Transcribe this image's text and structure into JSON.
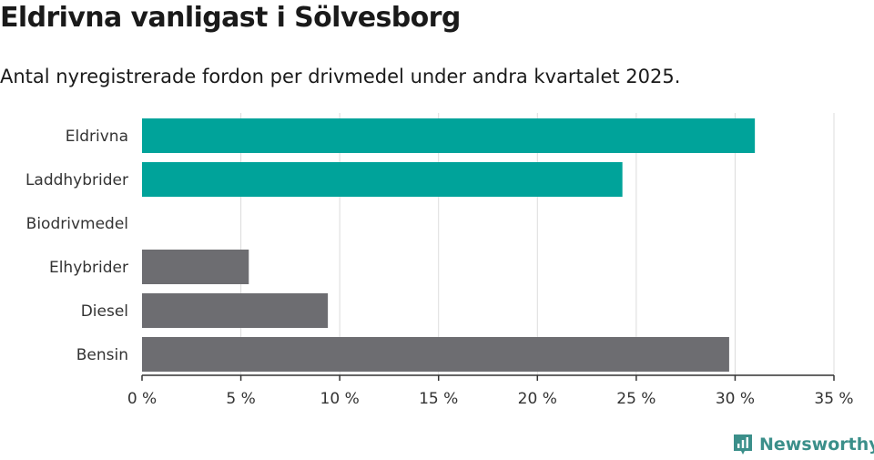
{
  "title": "Eldrivna vanligast i Sölvesborg",
  "subtitle": "Antal nyregistrerade fordon per drivmedel under andra kvartalet 2025.",
  "brand": {
    "name": "Newsworthy",
    "icon": "newsworthy-logo-icon"
  },
  "colors": {
    "highlight": "#00a39a",
    "other": "#6d6d71",
    "grid": "#dcdcdc",
    "axis": "#333333"
  },
  "chart_data": {
    "type": "bar",
    "orientation": "horizontal",
    "categories": [
      "Eldrivna",
      "Laddhybrider",
      "Biodrivmedel",
      "Elhybrider",
      "Diesel",
      "Bensin"
    ],
    "values": [
      31.0,
      24.3,
      0,
      5.4,
      9.4,
      29.7
    ],
    "highlighted": [
      true,
      true,
      false,
      false,
      false,
      false
    ],
    "x_ticks": [
      0,
      5,
      10,
      15,
      20,
      25,
      30,
      35
    ],
    "x_tick_labels": [
      "0 %",
      "5 %",
      "10 %",
      "15 %",
      "20 %",
      "25 %",
      "30 %",
      "35 %"
    ],
    "xlim": [
      0,
      35
    ],
    "grid": true
  }
}
